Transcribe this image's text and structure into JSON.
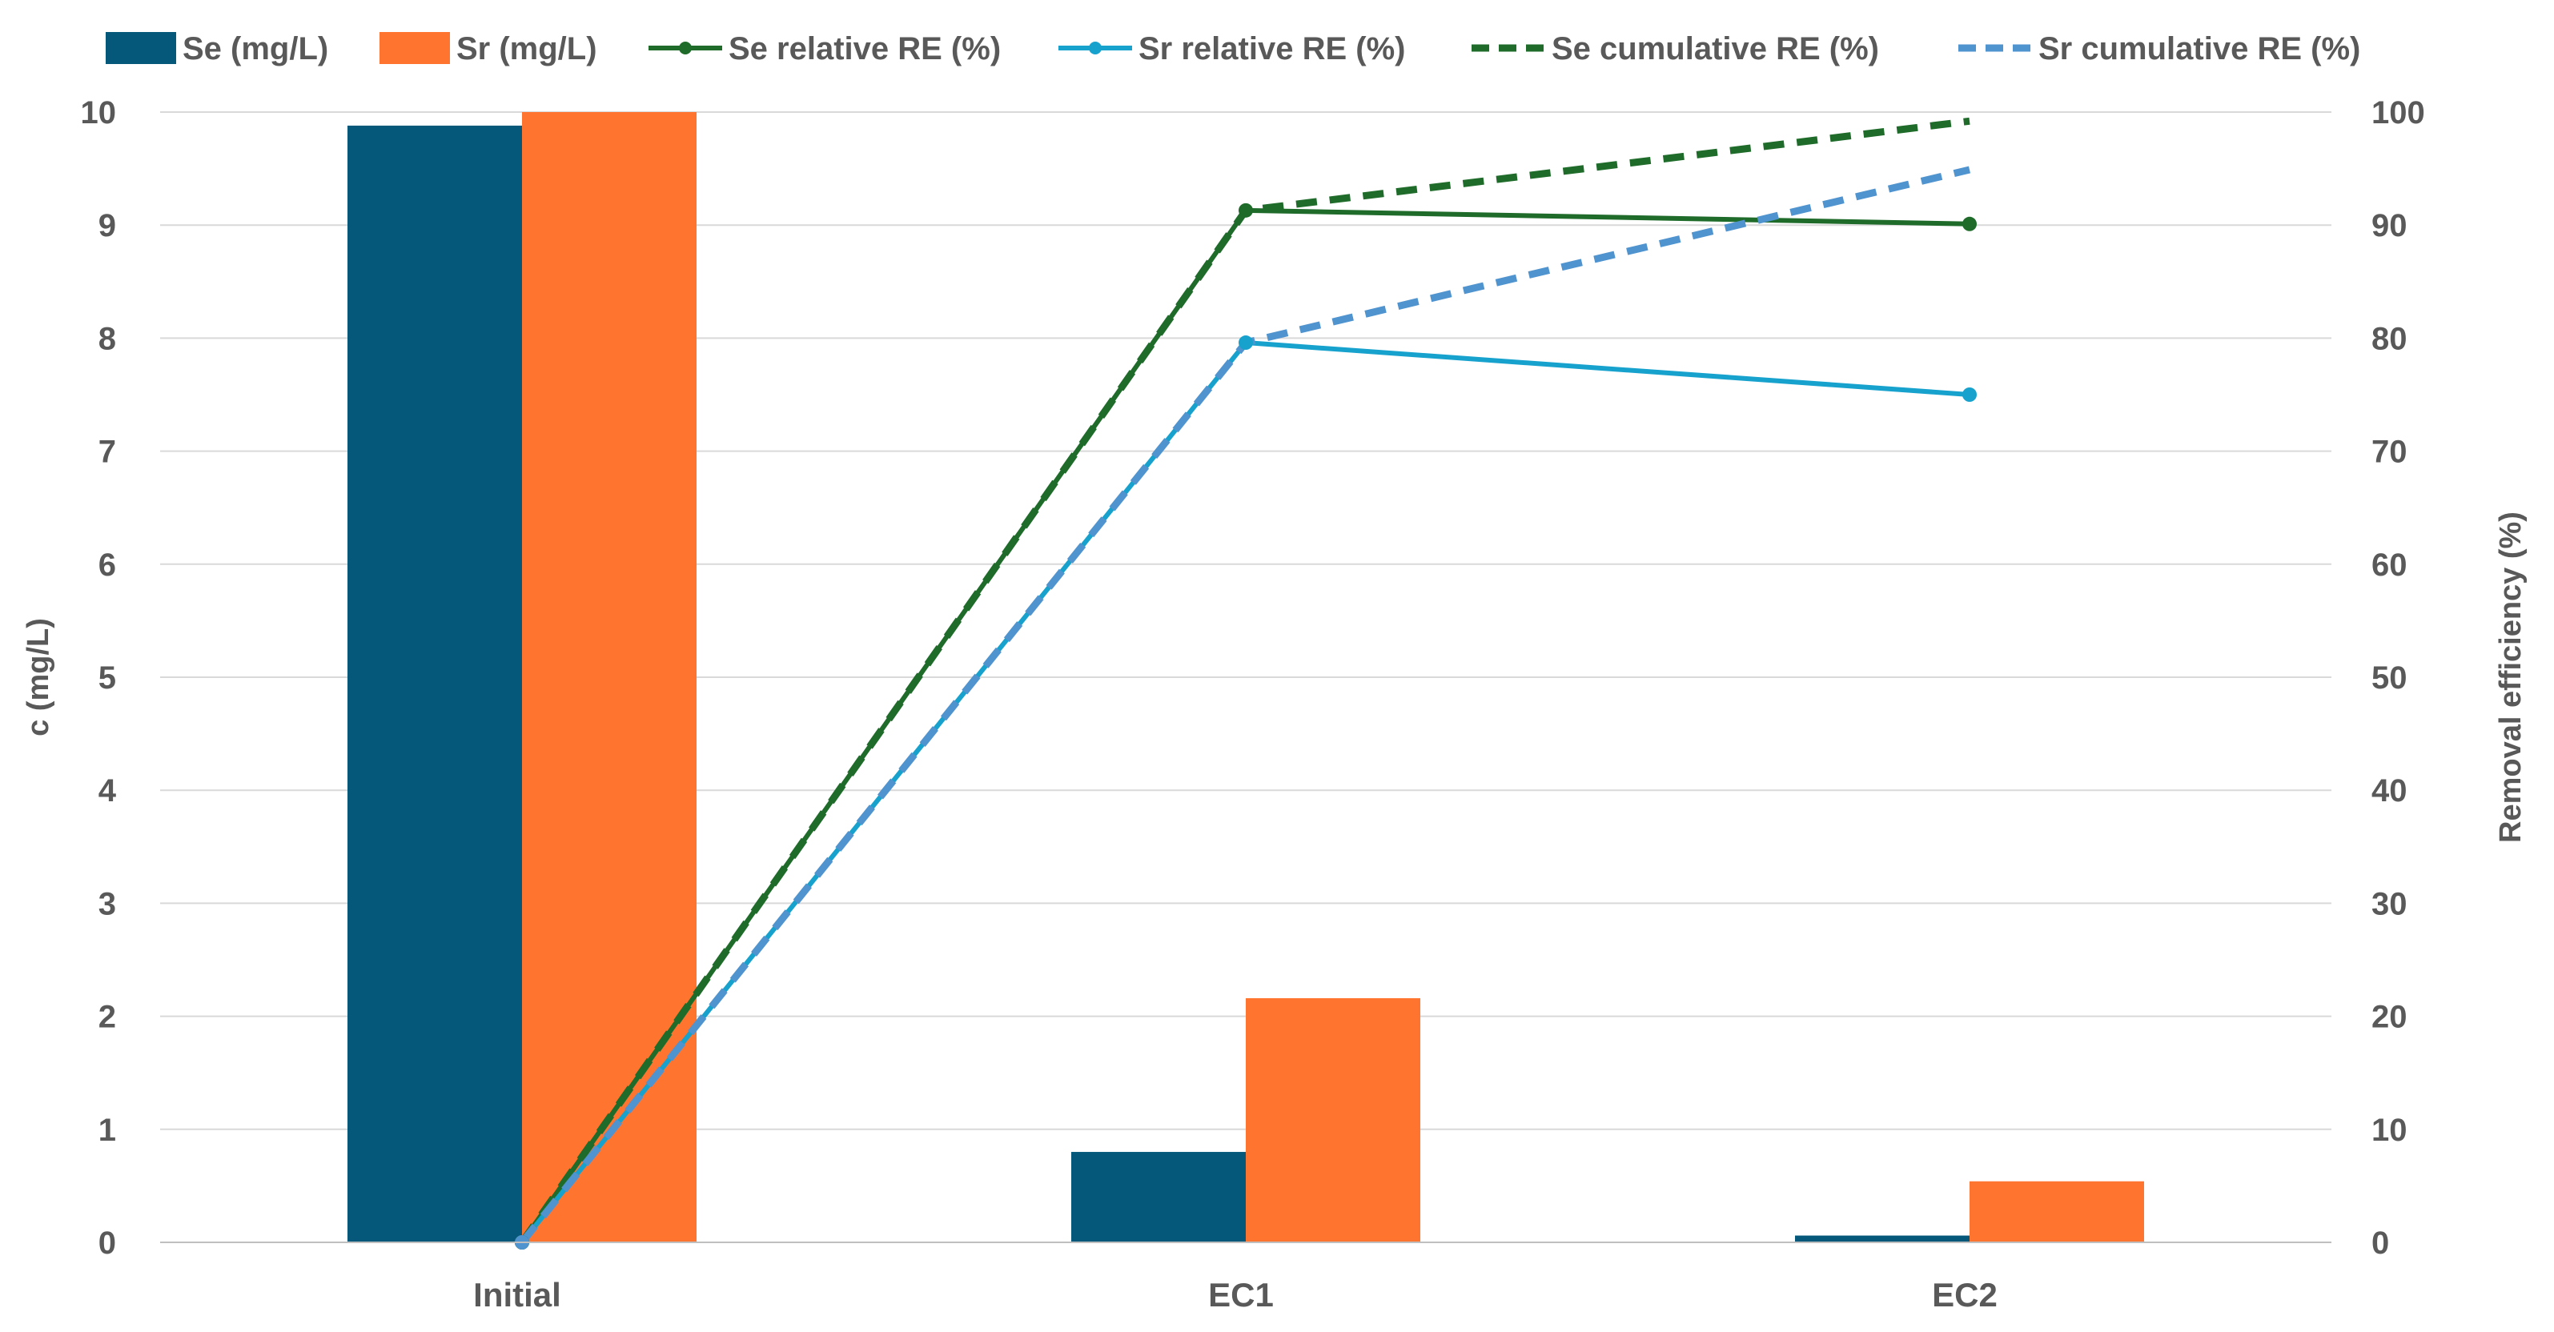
{
  "chart_data": {
    "type": "bar",
    "categories": [
      "Initial",
      "EC1",
      "EC2"
    ],
    "bar_series": [
      {
        "name": "Se (mg/L)",
        "color": "#05587A",
        "values": [
          9.88,
          0.8,
          0.06
        ]
      },
      {
        "name": "Sr (mg/L)",
        "color": "#FF7530",
        "values": [
          10.0,
          2.16,
          0.54
        ]
      }
    ],
    "line_series": [
      {
        "name": "Se relative RE (%)",
        "color": "#1E6B2A",
        "dash": false,
        "marker": true,
        "values": [
          0,
          91.3,
          90.1
        ]
      },
      {
        "name": "Sr relative RE (%)",
        "color": "#17A2CE",
        "dash": false,
        "marker": true,
        "values": [
          0,
          79.6,
          75.0
        ]
      },
      {
        "name": "Se cumulative RE (%)",
        "color": "#1E6B2A",
        "dash": true,
        "marker": false,
        "values": [
          0,
          91.3,
          99.2
        ]
      },
      {
        "name": "Sr cumulative RE (%)",
        "color": "#4F93CF",
        "dash": true,
        "marker": false,
        "values": [
          0,
          79.6,
          94.9
        ]
      }
    ],
    "ylabel": "c (mg/L)",
    "y2label": "Removal efficiency (%)",
    "ylim": [
      0,
      10
    ],
    "y2lim": [
      0,
      100
    ],
    "yticks": [
      "0",
      "1",
      "2",
      "3",
      "4",
      "5",
      "6",
      "7",
      "8",
      "9",
      "10"
    ],
    "y2ticks": [
      "0",
      "10",
      "20",
      "30",
      "40",
      "50",
      "60",
      "70",
      "80",
      "90",
      "100"
    ],
    "grid": true,
    "legend_position": "top"
  }
}
